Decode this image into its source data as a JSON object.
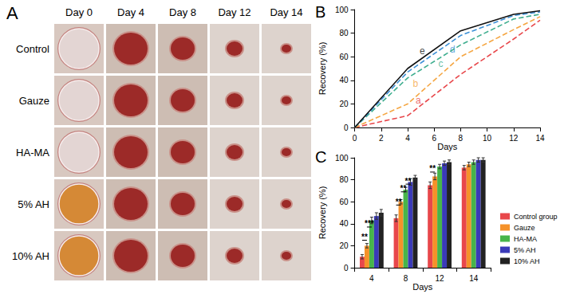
{
  "photo_panel": {
    "title": "A",
    "columns": [
      "Day 0",
      "Day 4",
      "Day 8",
      "Day 12",
      "Day 14"
    ],
    "rows": [
      "Control",
      "Gauze",
      "HA-MA",
      "5% AH",
      "10% AH"
    ]
  },
  "chart_data": [
    {
      "type": "line",
      "title": "B",
      "xlabel": "Days",
      "ylabel": "Recovery (%)",
      "x": [
        0,
        4,
        8,
        12,
        14
      ],
      "xlim": [
        0,
        14
      ],
      "xticks": [
        0,
        2,
        4,
        6,
        8,
        10,
        12,
        14
      ],
      "ylim": [
        0,
        100
      ],
      "yticks": [
        0,
        20,
        40,
        60,
        80,
        100
      ],
      "grid": false,
      "series": [
        {
          "name": "a",
          "color": "#e8474b",
          "values": [
            0,
            10,
            45,
            75,
            91
          ],
          "marker": "none",
          "line_style": "dashed"
        },
        {
          "name": "b",
          "color": "#f5a642",
          "values": [
            0,
            20,
            60,
            83,
            94
          ],
          "marker": "none",
          "line_style": "dashed"
        },
        {
          "name": "c",
          "color": "#3fae8f",
          "values": [
            0,
            42,
            70,
            92,
            96
          ],
          "marker": "none",
          "line_style": "dashed"
        },
        {
          "name": "d",
          "color": "#3a8fd6",
          "values": [
            0,
            47,
            78,
            95,
            98
          ],
          "marker": "none",
          "line_style": "dashed"
        },
        {
          "name": "e",
          "color": "#111111",
          "values": [
            0,
            50,
            82,
            96,
            99
          ],
          "marker": "none",
          "line_style": "solid"
        }
      ],
      "annotations": [
        {
          "text": "a",
          "x": 4.8,
          "y": 23
        },
        {
          "text": "b",
          "x": 4.6,
          "y": 37
        },
        {
          "text": "c",
          "x": 6.5,
          "y": 54
        },
        {
          "text": "d",
          "x": 7.4,
          "y": 66
        },
        {
          "text": "e",
          "x": 5.1,
          "y": 65
        }
      ]
    },
    {
      "type": "bar",
      "title": "C",
      "xlabel": "Days",
      "ylabel": "Recovery (%)",
      "categories": [
        "4",
        "8",
        "12",
        "14"
      ],
      "ylim": [
        0,
        100
      ],
      "yticks": [
        0,
        20,
        40,
        60,
        80,
        100
      ],
      "grid": false,
      "legend": "right",
      "series": [
        {
          "name": "Control group",
          "color": "#e8474b",
          "values": [
            10,
            45,
            75,
            91
          ],
          "errors": [
            2,
            3,
            3,
            2
          ]
        },
        {
          "name": "Gauze",
          "color": "#f5922a",
          "values": [
            20,
            60,
            83,
            94
          ],
          "errors": [
            2,
            2,
            3,
            2
          ]
        },
        {
          "name": "HA-MA",
          "color": "#47b54a",
          "values": [
            43,
            71,
            92,
            96
          ],
          "errors": [
            3,
            2,
            2,
            2
          ]
        },
        {
          "name": "5% AH",
          "color": "#3a3ab8",
          "values": [
            47,
            78,
            95,
            98
          ],
          "errors": [
            3,
            3,
            2,
            2
          ]
        },
        {
          "name": "10% AH",
          "color": "#222222",
          "values": [
            50,
            82,
            96,
            98
          ],
          "errors": [
            3,
            2,
            2,
            2
          ]
        }
      ],
      "annotations": [
        {
          "text": "**",
          "category": "4",
          "between": [
            "Control group",
            "Gauze"
          ],
          "y": 25
        },
        {
          "text": "***",
          "category": "4",
          "between": [
            "Gauze",
            "HA-MA"
          ],
          "y": 37
        },
        {
          "text": "**",
          "category": "8",
          "between": [
            "Control group",
            "Gauze"
          ],
          "y": 57
        },
        {
          "text": "**",
          "category": "8",
          "between": [
            "Gauze",
            "HA-MA"
          ],
          "y": 69
        },
        {
          "text": "**",
          "category": "8",
          "between": [
            "HA-MA",
            "5% AH"
          ],
          "y": 76
        },
        {
          "text": "**",
          "category": "12",
          "between": [
            "Control group",
            "Gauze"
          ],
          "y": 87
        }
      ]
    }
  ]
}
